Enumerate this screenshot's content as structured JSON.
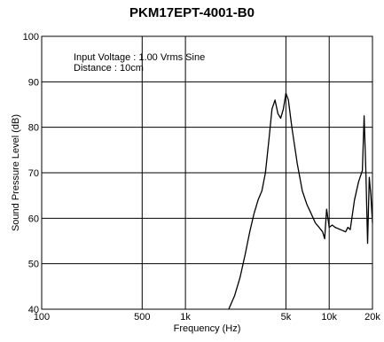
{
  "chart_data": {
    "type": "line",
    "title": "PKM17EPT-4001-B0",
    "xlabel": "Frequency (Hz)",
    "ylabel": "Sound Pressure Level (dB)",
    "x_scale": "log",
    "xlim": [
      100,
      20000
    ],
    "ylim": [
      40,
      100
    ],
    "grid": true,
    "x_ticks": [
      {
        "value": 100,
        "label": "100"
      },
      {
        "value": 500,
        "label": "500"
      },
      {
        "value": 1000,
        "label": "1k"
      },
      {
        "value": 5000,
        "label": "5k"
      },
      {
        "value": 10000,
        "label": "10k"
      },
      {
        "value": 20000,
        "label": "20k"
      }
    ],
    "y_ticks": [
      40,
      50,
      60,
      70,
      80,
      90,
      100
    ],
    "annotations": [
      "Input Voltage : 1.00 Vrms Sine",
      "Distance : 10cm"
    ],
    "series": [
      {
        "color": "#000000",
        "x": [
          2000,
          2200,
          2400,
          2600,
          2800,
          3000,
          3200,
          3400,
          3600,
          3800,
          4000,
          4200,
          4400,
          4600,
          4800,
          5000,
          5200,
          5500,
          6000,
          6500,
          7000,
          7500,
          8000,
          8500,
          9000,
          9300,
          9600,
          10000,
          10500,
          11000,
          12000,
          13000,
          13500,
          14000,
          15000,
          16000,
          17000,
          17500,
          18000,
          18500,
          19000,
          19500,
          20000
        ],
        "y": [
          40,
          43,
          47,
          52,
          57,
          61,
          64,
          66,
          70,
          77,
          84,
          86,
          83,
          82,
          84,
          87.5,
          86,
          80,
          72,
          66,
          63,
          61,
          59,
          58,
          57,
          55.5,
          62,
          58,
          58.5,
          58,
          57.5,
          57,
          58,
          57.5,
          64,
          68,
          70.5,
          82.5,
          70,
          54.5,
          69,
          65,
          59
        ]
      }
    ]
  }
}
